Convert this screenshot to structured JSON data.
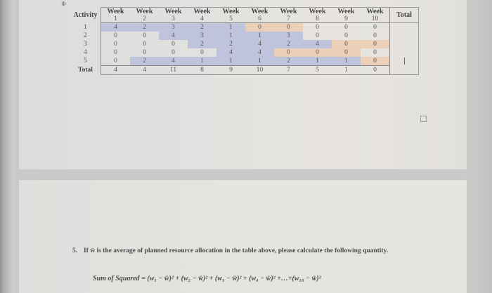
{
  "table": {
    "corner_label": "Activity",
    "week_word": "Week",
    "weeks": [
      "1",
      "2",
      "3",
      "4",
      "5",
      "6",
      "7",
      "8",
      "9",
      "10"
    ],
    "total_header": "Total",
    "rows": [
      {
        "label": "1",
        "values": [
          "4",
          "2",
          "3",
          "2",
          "1",
          "0",
          "0",
          "0",
          "0",
          "0"
        ],
        "colors": [
          "b",
          "b",
          "b",
          "b",
          "b",
          "o",
          "o",
          "n",
          "n",
          "n"
        ]
      },
      {
        "label": "2",
        "values": [
          "0",
          "0",
          "4",
          "3",
          "1",
          "1",
          "3",
          "0",
          "0",
          "0"
        ],
        "colors": [
          "n",
          "n",
          "b",
          "b",
          "b",
          "b",
          "b",
          "n",
          "n",
          "n"
        ]
      },
      {
        "label": "3",
        "values": [
          "0",
          "0",
          "0",
          "2",
          "2",
          "4",
          "2",
          "4",
          "0",
          "0"
        ],
        "colors": [
          "n",
          "n",
          "n",
          "b",
          "b",
          "b",
          "b",
          "b",
          "o",
          "o"
        ]
      },
      {
        "label": "4",
        "values": [
          "0",
          "0",
          "0",
          "0",
          "4",
          "4",
          "0",
          "0",
          "0",
          "0"
        ],
        "colors": [
          "n",
          "n",
          "n",
          "n",
          "b",
          "b",
          "o",
          "o",
          "o",
          "n"
        ]
      },
      {
        "label": "5",
        "values": [
          "0",
          "2",
          "4",
          "1",
          "1",
          "1",
          "2",
          "1",
          "1",
          "0"
        ],
        "colors": [
          "n",
          "b",
          "b",
          "b",
          "b",
          "b",
          "b",
          "b",
          "b",
          "o"
        ]
      }
    ],
    "total_row": {
      "label": "Total",
      "values": [
        "4",
        "4",
        "11",
        "8",
        "9",
        "10",
        "7",
        "5",
        "1",
        "0"
      ]
    },
    "colors": {
      "blue": "#bfc4dc",
      "orange": "#ebcfb7"
    }
  },
  "question": {
    "number": "5.",
    "text": "If w̄ is the average of planned resource allocation in the table above, please calculate the following quantity.",
    "formula_label": "Sum of Squared",
    "formula": "= (w₁ − w̄)² + (w₂ − w̄)² + (w₃ − w̄)² + (w₄ − w̄)² +…+(w₁₀ − w̄)²"
  },
  "icons": {
    "move_handle": "⊕"
  }
}
